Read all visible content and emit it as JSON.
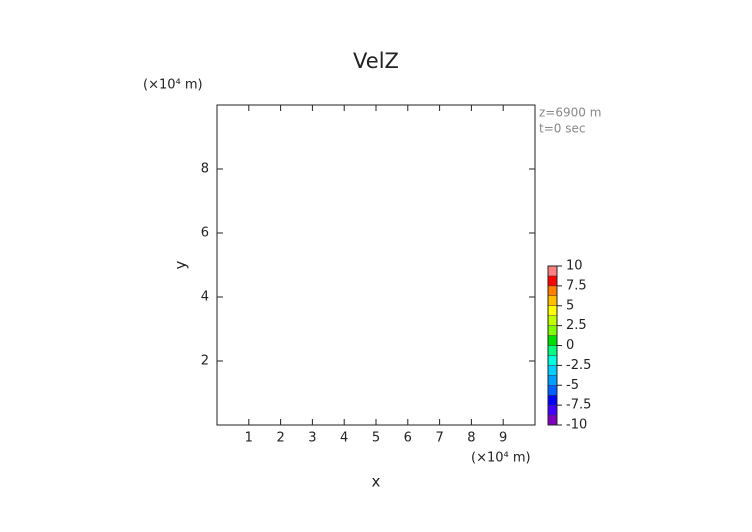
{
  "chart_data": {
    "type": "contour",
    "title": "VelZ",
    "xlabel": "x",
    "ylabel": "y",
    "x_unit": "(×10⁴ m)",
    "y_unit": "(×10⁴ m)",
    "annotations": [
      "z=6900 m",
      "t=0 sec"
    ],
    "xlim": [
      0,
      10
    ],
    "xticks": [
      1,
      2,
      3,
      4,
      5,
      6,
      7,
      8,
      9
    ],
    "ylim": [
      0,
      10
    ],
    "yticks": [
      2,
      4,
      6,
      8
    ],
    "colorbar": {
      "lim": [
        -10,
        10
      ],
      "ticks": [
        10,
        7.5,
        5,
        2.5,
        0,
        -2.5,
        -5,
        -7.5,
        -10
      ],
      "colors": [
        "#8000c0",
        "#4000ff",
        "#0000ff",
        "#0060ff",
        "#00a0ff",
        "#00d0ff",
        "#00ffe0",
        "#00ff80",
        "#00e000",
        "#80ff00",
        "#c0ff00",
        "#ffff00",
        "#ffc000",
        "#ff8000",
        "#ff0000",
        "#ff8080"
      ]
    }
  }
}
